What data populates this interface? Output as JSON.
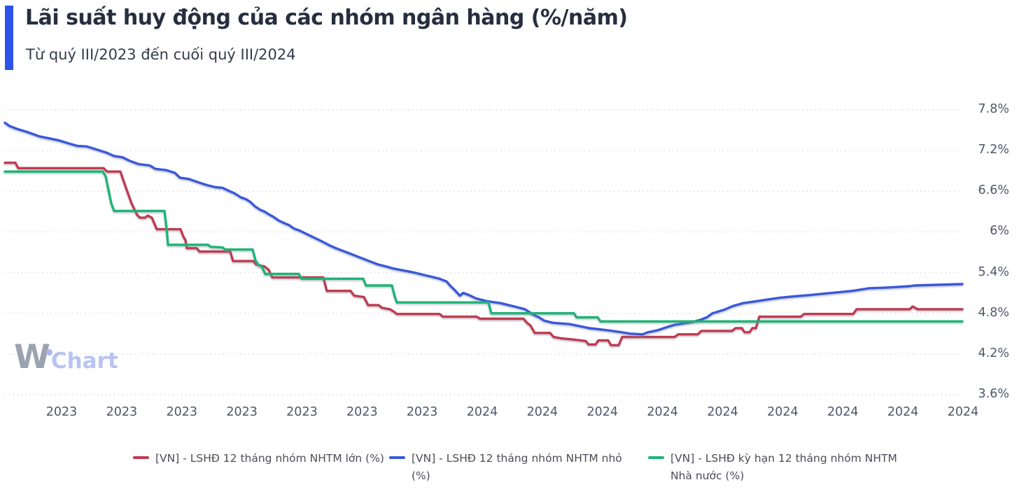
{
  "header": {
    "title": "Lãi suất huy động của các nhóm ngân hàng (%/năm)",
    "subtitle": "Từ quý III/2023 đến cuối quý III/2024"
  },
  "watermark": {
    "part1": "W",
    "part2": "Chart"
  },
  "colors": {
    "accent_bar": "#2b53e8",
    "grid": "#c6cad3",
    "axis_text": "#4e586a",
    "series_red": "#bf3b50",
    "series_blue": "#3a58d8",
    "series_green": "#1eb475"
  },
  "chart_data": {
    "type": "line",
    "title": "Lãi suất huy động của các nhóm ngân hàng (%/năm)",
    "subtitle": "Từ quý III/2023 đến cuối quý III/2024",
    "grid": "dotted-horizontal",
    "legend_position": "bottom",
    "y_axis": {
      "min": 3.6,
      "max": 7.8,
      "unit": "%/năm",
      "ticks": [
        {
          "label": "7.8%",
          "value": 7.8
        },
        {
          "label": "7.2%",
          "value": 7.2
        },
        {
          "label": "6.6%",
          "value": 6.6
        },
        {
          "label": "6%",
          "value": 6.0
        },
        {
          "label": "5.4%",
          "value": 5.4
        },
        {
          "label": "4.8%",
          "value": 4.8
        },
        {
          "label": "4.2%",
          "value": 4.2
        },
        {
          "label": "3.6%",
          "value": 3.6
        }
      ]
    },
    "x_axis": {
      "labels": [
        "2023",
        "2023",
        "2023",
        "2023",
        "2023",
        "2023",
        "2023",
        "2024",
        "2024",
        "2024",
        "2024",
        "2024",
        "2024",
        "2024",
        "2024",
        "2024"
      ]
    },
    "series": [
      {
        "name": "[VN] - LSHĐ 12 tháng nhóm NHTM lớn (%)",
        "color": "#bf3b50",
        "points": [
          [
            7,
            7.02
          ],
          [
            22,
            7.02
          ],
          [
            26,
            6.94
          ],
          [
            148,
            6.94
          ],
          [
            153,
            6.89
          ],
          [
            172,
            6.89
          ],
          [
            180,
            6.65
          ],
          [
            188,
            6.42
          ],
          [
            196,
            6.25
          ],
          [
            200,
            6.21
          ],
          [
            207,
            6.21
          ],
          [
            211,
            6.24
          ],
          [
            217,
            6.21
          ],
          [
            224,
            6.04
          ],
          [
            258,
            6.04
          ],
          [
            262,
            5.93
          ],
          [
            265,
            5.88
          ],
          [
            267,
            5.76
          ],
          [
            281,
            5.76
          ],
          [
            285,
            5.71
          ],
          [
            329,
            5.71
          ],
          [
            333,
            5.57
          ],
          [
            362,
            5.57
          ],
          [
            366,
            5.52
          ],
          [
            374,
            5.5
          ],
          [
            378,
            5.49
          ],
          [
            384,
            5.44
          ],
          [
            389,
            5.33
          ],
          [
            462,
            5.33
          ],
          [
            467,
            5.13
          ],
          [
            501,
            5.13
          ],
          [
            506,
            5.06
          ],
          [
            520,
            5.04
          ],
          [
            526,
            4.92
          ],
          [
            541,
            4.92
          ],
          [
            546,
            4.88
          ],
          [
            557,
            4.86
          ],
          [
            562,
            4.83
          ],
          [
            567,
            4.79
          ],
          [
            628,
            4.79
          ],
          [
            633,
            4.75
          ],
          [
            681,
            4.75
          ],
          [
            686,
            4.72
          ],
          [
            748,
            4.72
          ],
          [
            753,
            4.66
          ],
          [
            758,
            4.62
          ],
          [
            764,
            4.51
          ],
          [
            786,
            4.51
          ],
          [
            791,
            4.45
          ],
          [
            802,
            4.43
          ],
          [
            822,
            4.41
          ],
          [
            837,
            4.39
          ],
          [
            841,
            4.34
          ],
          [
            851,
            4.34
          ],
          [
            855,
            4.4
          ],
          [
            869,
            4.4
          ],
          [
            873,
            4.33
          ],
          [
            884,
            4.33
          ],
          [
            889,
            4.45
          ],
          [
            964,
            4.45
          ],
          [
            969,
            4.49
          ],
          [
            997,
            4.49
          ],
          [
            1002,
            4.54
          ],
          [
            1046,
            4.54
          ],
          [
            1051,
            4.58
          ],
          [
            1060,
            4.58
          ],
          [
            1064,
            4.52
          ],
          [
            1071,
            4.52
          ],
          [
            1075,
            4.58
          ],
          [
            1080,
            4.58
          ],
          [
            1085,
            4.75
          ],
          [
            1144,
            4.75
          ],
          [
            1149,
            4.79
          ],
          [
            1219,
            4.79
          ],
          [
            1224,
            4.86
          ],
          [
            1300,
            4.86
          ],
          [
            1304,
            4.9
          ],
          [
            1311,
            4.86
          ],
          [
            1375,
            4.86
          ]
        ]
      },
      {
        "name": "[VN] - LSHĐ 12 tháng nhóm NHTM nhỏ (%)",
        "color": "#3a58d8",
        "points": [
          [
            7,
            7.61
          ],
          [
            14,
            7.56
          ],
          [
            24,
            7.52
          ],
          [
            40,
            7.47
          ],
          [
            56,
            7.41
          ],
          [
            70,
            7.38
          ],
          [
            84,
            7.35
          ],
          [
            100,
            7.3
          ],
          [
            110,
            7.27
          ],
          [
            124,
            7.26
          ],
          [
            140,
            7.21
          ],
          [
            152,
            7.17
          ],
          [
            163,
            7.12
          ],
          [
            175,
            7.1
          ],
          [
            185,
            7.05
          ],
          [
            198,
            7.0
          ],
          [
            214,
            6.98
          ],
          [
            222,
            6.93
          ],
          [
            238,
            6.91
          ],
          [
            250,
            6.87
          ],
          [
            257,
            6.8
          ],
          [
            270,
            6.78
          ],
          [
            284,
            6.73
          ],
          [
            296,
            6.69
          ],
          [
            308,
            6.66
          ],
          [
            318,
            6.65
          ],
          [
            326,
            6.61
          ],
          [
            335,
            6.57
          ],
          [
            344,
            6.51
          ],
          [
            352,
            6.48
          ],
          [
            358,
            6.44
          ],
          [
            364,
            6.38
          ],
          [
            371,
            6.33
          ],
          [
            378,
            6.3
          ],
          [
            384,
            6.26
          ],
          [
            391,
            6.22
          ],
          [
            398,
            6.17
          ],
          [
            406,
            6.13
          ],
          [
            413,
            6.1
          ],
          [
            420,
            6.05
          ],
          [
            428,
            6.02
          ],
          [
            436,
            5.98
          ],
          [
            442,
            5.95
          ],
          [
            452,
            5.9
          ],
          [
            462,
            5.85
          ],
          [
            471,
            5.8
          ],
          [
            480,
            5.76
          ],
          [
            490,
            5.72
          ],
          [
            500,
            5.68
          ],
          [
            510,
            5.64
          ],
          [
            520,
            5.6
          ],
          [
            530,
            5.56
          ],
          [
            540,
            5.52
          ],
          [
            552,
            5.49
          ],
          [
            562,
            5.46
          ],
          [
            572,
            5.44
          ],
          [
            582,
            5.42
          ],
          [
            592,
            5.4
          ],
          [
            604,
            5.37
          ],
          [
            616,
            5.34
          ],
          [
            628,
            5.31
          ],
          [
            638,
            5.27
          ],
          [
            644,
            5.2
          ],
          [
            650,
            5.14
          ],
          [
            657,
            5.06
          ],
          [
            662,
            5.1
          ],
          [
            670,
            5.07
          ],
          [
            680,
            5.02
          ],
          [
            695,
            4.98
          ],
          [
            715,
            4.95
          ],
          [
            735,
            4.9
          ],
          [
            750,
            4.86
          ],
          [
            756,
            4.82
          ],
          [
            762,
            4.78
          ],
          [
            770,
            4.74
          ],
          [
            778,
            4.69
          ],
          [
            790,
            4.66
          ],
          [
            814,
            4.64
          ],
          [
            828,
            4.61
          ],
          [
            842,
            4.58
          ],
          [
            868,
            4.55
          ],
          [
            888,
            4.52
          ],
          [
            900,
            4.5
          ],
          [
            918,
            4.49
          ],
          [
            926,
            4.52
          ],
          [
            940,
            4.55
          ],
          [
            954,
            4.6
          ],
          [
            964,
            4.63
          ],
          [
            976,
            4.65
          ],
          [
            988,
            4.67
          ],
          [
            1000,
            4.7
          ],
          [
            1010,
            4.74
          ],
          [
            1018,
            4.8
          ],
          [
            1034,
            4.85
          ],
          [
            1048,
            4.91
          ],
          [
            1062,
            4.95
          ],
          [
            1076,
            4.97
          ],
          [
            1095,
            5.0
          ],
          [
            1115,
            5.03
          ],
          [
            1135,
            5.05
          ],
          [
            1158,
            5.07
          ],
          [
            1178,
            5.09
          ],
          [
            1198,
            5.11
          ],
          [
            1218,
            5.13
          ],
          [
            1242,
            5.17
          ],
          [
            1268,
            5.18
          ],
          [
            1300,
            5.2
          ],
          [
            1306,
            5.21
          ],
          [
            1340,
            5.22
          ],
          [
            1375,
            5.23
          ]
        ]
      },
      {
        "name": "[VN] - LSHĐ kỳ hạn 12 tháng nhóm NHTM Nhà nước (%)",
        "color": "#1eb475",
        "points": [
          [
            7,
            6.89
          ],
          [
            147,
            6.89
          ],
          [
            151,
            6.82
          ],
          [
            155,
            6.62
          ],
          [
            159,
            6.42
          ],
          [
            163,
            6.31
          ],
          [
            235,
            6.31
          ],
          [
            238,
            6.05
          ],
          [
            240,
            5.81
          ],
          [
            297,
            5.81
          ],
          [
            301,
            5.78
          ],
          [
            318,
            5.77
          ],
          [
            322,
            5.74
          ],
          [
            361,
            5.74
          ],
          [
            365,
            5.58
          ],
          [
            369,
            5.52
          ],
          [
            374,
            5.49
          ],
          [
            379,
            5.38
          ],
          [
            427,
            5.38
          ],
          [
            431,
            5.31
          ],
          [
            519,
            5.31
          ],
          [
            523,
            5.21
          ],
          [
            560,
            5.21
          ],
          [
            564,
            5.05
          ],
          [
            567,
            4.96
          ],
          [
            698,
            4.96
          ],
          [
            702,
            4.8
          ],
          [
            820,
            4.8
          ],
          [
            824,
            4.74
          ],
          [
            854,
            4.74
          ],
          [
            858,
            4.68
          ],
          [
            1375,
            4.68
          ]
        ]
      }
    ]
  }
}
